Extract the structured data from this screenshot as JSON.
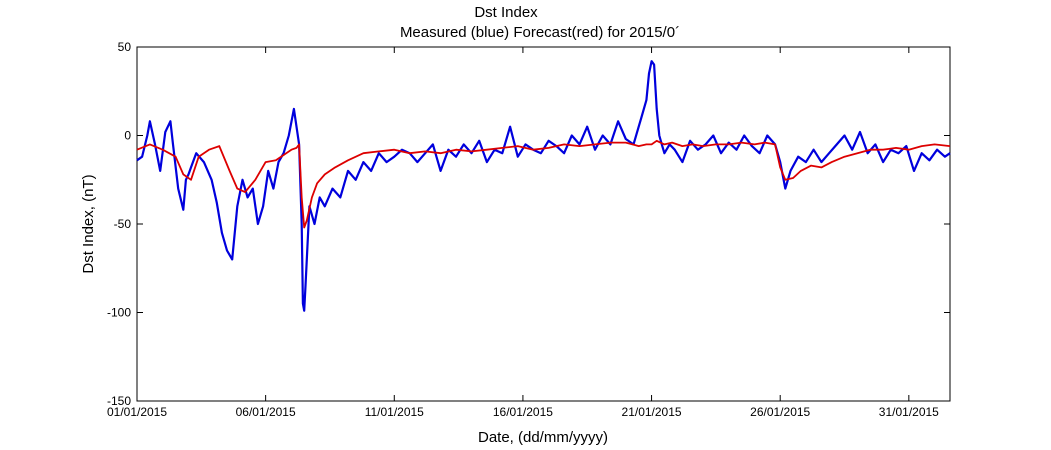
{
  "chart_data": {
    "type": "line",
    "title": "Dst Index",
    "subtitle": "Measured (blue) Forecast(red) for 2015/0´",
    "xlabel": "Date, (dd/mm/yyyy)",
    "ylabel": "Dst Index, (nT)",
    "ylim": [
      -150,
      50
    ],
    "xlim": [
      1,
      32.6
    ],
    "xlim_unit": "day of January 2015",
    "yticks": [
      50,
      0,
      -50,
      -100,
      -150
    ],
    "xticks": [
      {
        "day": 1,
        "label": "01/01/2015"
      },
      {
        "day": 6,
        "label": "06/01/2015"
      },
      {
        "day": 11,
        "label": "11/01/2015"
      },
      {
        "day": 16,
        "label": "16/01/2015"
      },
      {
        "day": 21,
        "label": "21/01/2015"
      },
      {
        "day": 26,
        "label": "26/01/2015"
      },
      {
        "day": 31,
        "label": "31/01/2015"
      }
    ],
    "grid": false,
    "legend": "none",
    "series": [
      {
        "key": "measured",
        "color": "#0000dd",
        "x": [
          1.0,
          1.2,
          1.4,
          1.5,
          1.7,
          1.9,
          2.1,
          2.3,
          2.4,
          2.6,
          2.8,
          2.9,
          3.0,
          3.1,
          3.3,
          3.6,
          3.9,
          4.1,
          4.3,
          4.5,
          4.7,
          4.9,
          5.1,
          5.3,
          5.5,
          5.7,
          5.9,
          6.1,
          6.3,
          6.5,
          6.7,
          6.9,
          7.1,
          7.3,
          7.4,
          7.45,
          7.5,
          7.55,
          7.6,
          7.7,
          7.9,
          8.1,
          8.3,
          8.6,
          8.9,
          9.2,
          9.5,
          9.8,
          10.1,
          10.4,
          10.7,
          11.0,
          11.3,
          11.6,
          11.9,
          12.2,
          12.5,
          12.8,
          13.1,
          13.4,
          13.7,
          14.0,
          14.3,
          14.6,
          14.9,
          15.2,
          15.5,
          15.8,
          16.1,
          16.4,
          16.7,
          17.0,
          17.3,
          17.6,
          17.9,
          18.2,
          18.5,
          18.8,
          19.1,
          19.4,
          19.7,
          20.0,
          20.3,
          20.6,
          20.8,
          20.9,
          21.0,
          21.1,
          21.2,
          21.3,
          21.4,
          21.5,
          21.7,
          21.9,
          22.2,
          22.5,
          22.8,
          23.1,
          23.4,
          23.7,
          24.0,
          24.3,
          24.6,
          24.9,
          25.2,
          25.5,
          25.8,
          26.0,
          26.2,
          26.4,
          26.7,
          27.0,
          27.3,
          27.6,
          27.9,
          28.2,
          28.5,
          28.8,
          29.1,
          29.4,
          29.7,
          30.0,
          30.3,
          30.6,
          30.9,
          31.2,
          31.5,
          31.8,
          32.1,
          32.4,
          32.6
        ],
        "y": [
          -14,
          -12,
          0,
          8,
          -5,
          -20,
          2,
          8,
          -5,
          -30,
          -42,
          -25,
          -22,
          -18,
          -10,
          -15,
          -25,
          -38,
          -55,
          -65,
          -70,
          -40,
          -25,
          -35,
          -30,
          -50,
          -40,
          -20,
          -30,
          -15,
          -10,
          0,
          15,
          -5,
          -50,
          -95,
          -99,
          -85,
          -70,
          -40,
          -50,
          -35,
          -40,
          -30,
          -35,
          -20,
          -25,
          -15,
          -20,
          -10,
          -15,
          -12,
          -8,
          -10,
          -15,
          -10,
          -5,
          -20,
          -8,
          -12,
          -5,
          -10,
          -3,
          -15,
          -8,
          -10,
          5,
          -12,
          -5,
          -8,
          -10,
          -3,
          -6,
          -10,
          0,
          -5,
          5,
          -8,
          0,
          -5,
          8,
          -2,
          -5,
          10,
          20,
          35,
          42,
          40,
          15,
          0,
          -5,
          -10,
          -5,
          -8,
          -15,
          -3,
          -8,
          -5,
          0,
          -10,
          -4,
          -8,
          0,
          -6,
          -10,
          0,
          -5,
          -15,
          -30,
          -20,
          -12,
          -15,
          -8,
          -15,
          -10,
          -5,
          0,
          -8,
          2,
          -10,
          -5,
          -15,
          -8,
          -10,
          -6,
          -20,
          -10,
          -14,
          -8,
          -12,
          -10
        ]
      },
      {
        "key": "forecast",
        "color": "#dd0000",
        "x": [
          1.0,
          1.5,
          2.0,
          2.5,
          2.8,
          3.1,
          3.4,
          3.8,
          4.2,
          4.6,
          4.9,
          5.2,
          5.6,
          6.0,
          6.4,
          6.8,
          7.0,
          7.2,
          7.3,
          7.4,
          7.5,
          7.6,
          7.8,
          8.0,
          8.3,
          8.7,
          9.2,
          9.8,
          10.4,
          11.0,
          11.6,
          12.2,
          12.8,
          13.4,
          14.0,
          14.6,
          15.2,
          15.8,
          16.4,
          17.0,
          17.6,
          18.2,
          18.8,
          19.4,
          20.0,
          20.5,
          20.8,
          21.0,
          21.2,
          21.5,
          21.8,
          22.2,
          22.6,
          23.0,
          23.5,
          24.0,
          24.5,
          25.0,
          25.4,
          25.8,
          26.0,
          26.2,
          26.5,
          26.8,
          27.2,
          27.6,
          28.0,
          28.5,
          29.0,
          29.5,
          30.0,
          30.5,
          31.0,
          31.5,
          32.0,
          32.6
        ],
        "y": [
          -8,
          -5,
          -8,
          -12,
          -22,
          -25,
          -12,
          -8,
          -6,
          -20,
          -30,
          -32,
          -25,
          -15,
          -14,
          -10,
          -8,
          -7,
          -5,
          -35,
          -52,
          -48,
          -35,
          -27,
          -22,
          -18,
          -14,
          -10,
          -9,
          -8,
          -10,
          -9,
          -10,
          -8,
          -9,
          -8,
          -7,
          -6,
          -8,
          -7,
          -5,
          -6,
          -5,
          -4,
          -4,
          -6,
          -5,
          -5,
          -3,
          -5,
          -4,
          -6,
          -5,
          -6,
          -5,
          -5,
          -4,
          -5,
          -4,
          -5,
          -18,
          -25,
          -24,
          -20,
          -17,
          -18,
          -15,
          -12,
          -10,
          -8,
          -8,
          -7,
          -8,
          -6,
          -5,
          -6
        ]
      }
    ]
  }
}
